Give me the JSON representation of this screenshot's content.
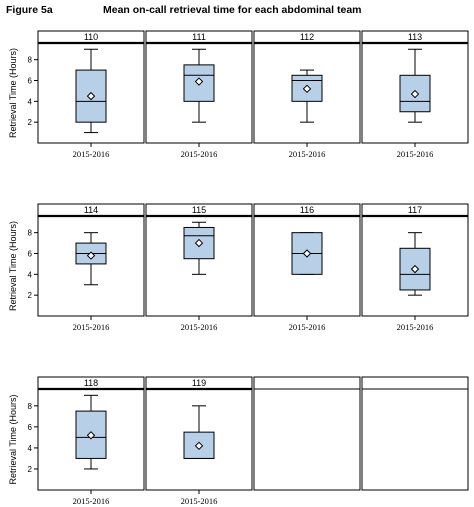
{
  "figure_label": "Figure 5a",
  "figure_title": "Mean on-call retrieval time for each abdominal team",
  "colors": {
    "box_fill": "#b8cfe8",
    "line": "#000000",
    "panel_border": "#000000",
    "background": "#ffffff"
  },
  "chart_data": {
    "type": "boxplot",
    "title": "Mean on-call retrieval time for each abdominal team",
    "ylabel": "Retrieval Time (Hours)",
    "yticks": [
      2,
      4,
      6,
      8
    ],
    "ylim": [
      0,
      9.6
    ],
    "category": "2015-2016",
    "panels": [
      {
        "team": "110",
        "category": "2015-2016",
        "min": 1,
        "q1": 2,
        "median": 4,
        "q3": 7,
        "max": 9,
        "mean": 4.5
      },
      {
        "team": "111",
        "category": "2015-2016",
        "min": 2,
        "q1": 4,
        "median": 6.5,
        "q3": 7.5,
        "max": 9,
        "mean": 5.9
      },
      {
        "team": "112",
        "category": "2015-2016",
        "min": 2,
        "q1": 4,
        "median": 6,
        "q3": 6.5,
        "max": 7,
        "mean": 5.2
      },
      {
        "team": "113",
        "category": "2015-2016",
        "min": 2,
        "q1": 3,
        "median": 4,
        "q3": 6.5,
        "max": 9,
        "mean": 4.7
      },
      {
        "team": "114",
        "category": "2015-2016",
        "min": 3,
        "q1": 5,
        "median": 6,
        "q3": 7,
        "max": 8,
        "mean": 5.8
      },
      {
        "team": "115",
        "category": "2015-2016",
        "min": 4,
        "q1": 5.5,
        "median": 7.7,
        "q3": 8.5,
        "max": 9,
        "mean": 7.0
      },
      {
        "team": "116",
        "category": "2015-2016",
        "min": 4,
        "q1": 4,
        "median": 6,
        "q3": 8,
        "max": 8,
        "mean": 6.0
      },
      {
        "team": "117",
        "category": "2015-2016",
        "min": 2,
        "q1": 2.5,
        "median": 4,
        "q3": 6.5,
        "max": 8,
        "mean": 4.5
      },
      {
        "team": "118",
        "category": "2015-2016",
        "min": 2,
        "q1": 3,
        "median": 5,
        "q3": 7.5,
        "max": 9,
        "mean": 5.2
      },
      {
        "team": "119",
        "category": "2015-2016",
        "min": 3,
        "q1": 3,
        "median": 3,
        "q3": 5.5,
        "max": 8,
        "mean": 4.2
      },
      {
        "team": "",
        "empty": true
      },
      {
        "team": "",
        "empty": true
      }
    ]
  }
}
